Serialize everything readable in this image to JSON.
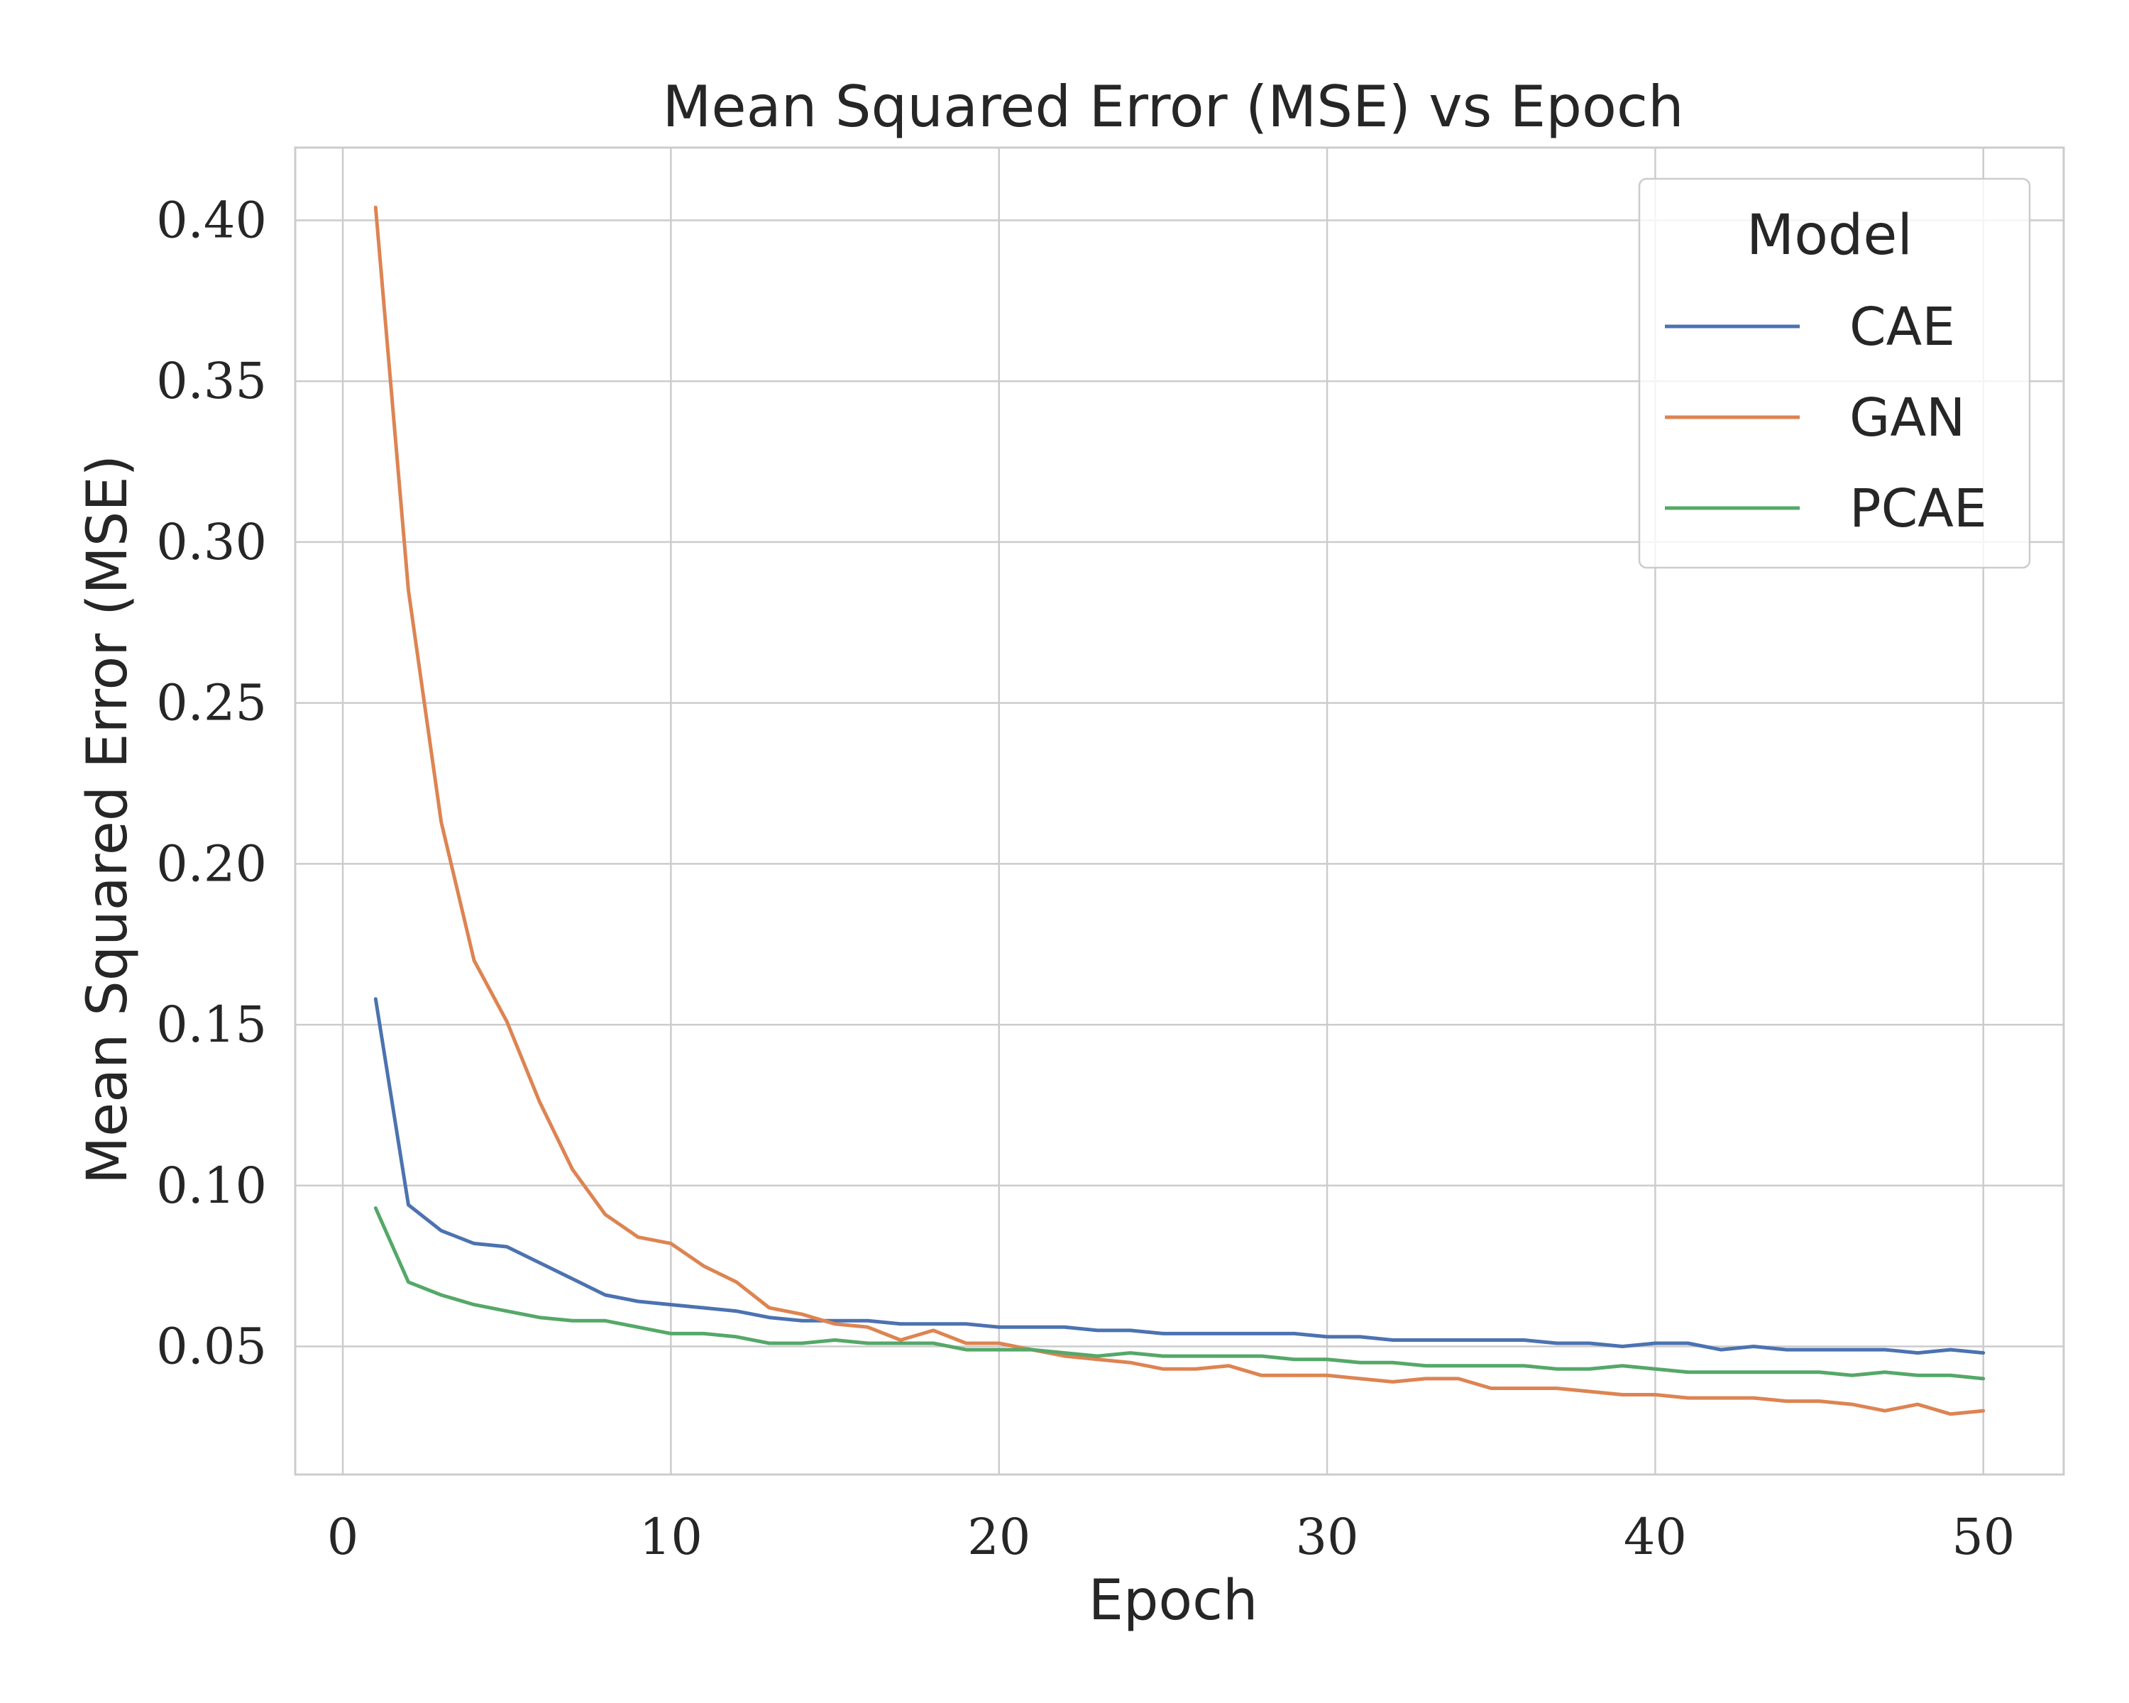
{
  "chart_data": {
    "type": "line",
    "title": "Mean Squared Error (MSE) vs Epoch",
    "xlabel": "Epoch",
    "ylabel": "Mean Squared Error (MSE)",
    "xlim": [
      -1.45,
      52.45
    ],
    "ylim": [
      0.0102,
      0.4226
    ],
    "x_ticks": [
      0,
      10,
      20,
      30,
      40,
      50
    ],
    "x_tick_labels": [
      "0",
      "10",
      "20",
      "30",
      "40",
      "50"
    ],
    "y_ticks": [
      0.05,
      0.1,
      0.15,
      0.2,
      0.25,
      0.3,
      0.35,
      0.4
    ],
    "y_tick_labels": [
      "0.05",
      "0.10",
      "0.15",
      "0.20",
      "0.25",
      "0.30",
      "0.35",
      "0.40"
    ],
    "grid": true,
    "legend": {
      "title": "Model",
      "placement": "top-right"
    },
    "x": [
      1,
      2,
      3,
      4,
      5,
      6,
      7,
      8,
      9,
      10,
      11,
      12,
      13,
      14,
      15,
      16,
      17,
      18,
      19,
      20,
      21,
      22,
      23,
      24,
      25,
      26,
      27,
      28,
      29,
      30,
      31,
      32,
      33,
      34,
      35,
      36,
      37,
      38,
      39,
      40,
      41,
      42,
      43,
      44,
      45,
      46,
      47,
      48,
      49,
      50
    ],
    "series": [
      {
        "name": "CAE",
        "color": "#4c72b0",
        "values": [
          0.158,
          0.094,
          0.086,
          0.082,
          0.081,
          0.076,
          0.071,
          0.066,
          0.064,
          0.063,
          0.062,
          0.061,
          0.059,
          0.058,
          0.058,
          0.058,
          0.057,
          0.057,
          0.057,
          0.056,
          0.056,
          0.056,
          0.055,
          0.055,
          0.054,
          0.054,
          0.054,
          0.054,
          0.054,
          0.053,
          0.053,
          0.052,
          0.052,
          0.052,
          0.052,
          0.052,
          0.051,
          0.051,
          0.05,
          0.051,
          0.051,
          0.049,
          0.05,
          0.049,
          0.049,
          0.049,
          0.049,
          0.048,
          0.049,
          0.048
        ]
      },
      {
        "name": "GAN",
        "color": "#dd8452",
        "values": [
          0.404,
          0.285,
          0.213,
          0.17,
          0.151,
          0.126,
          0.105,
          0.091,
          0.084,
          0.082,
          0.075,
          0.07,
          0.062,
          0.06,
          0.057,
          0.056,
          0.052,
          0.055,
          0.051,
          0.051,
          0.049,
          0.047,
          0.046,
          0.045,
          0.043,
          0.043,
          0.044,
          0.041,
          0.041,
          0.041,
          0.04,
          0.039,
          0.04,
          0.04,
          0.037,
          0.037,
          0.037,
          0.036,
          0.035,
          0.035,
          0.034,
          0.034,
          0.034,
          0.033,
          0.033,
          0.032,
          0.03,
          0.032,
          0.029,
          0.03
        ]
      },
      {
        "name": "PCAE",
        "color": "#55a868",
        "values": [
          0.093,
          0.07,
          0.066,
          0.063,
          0.061,
          0.059,
          0.058,
          0.058,
          0.056,
          0.054,
          0.054,
          0.053,
          0.051,
          0.051,
          0.052,
          0.051,
          0.051,
          0.051,
          0.049,
          0.049,
          0.049,
          0.048,
          0.047,
          0.048,
          0.047,
          0.047,
          0.047,
          0.047,
          0.046,
          0.046,
          0.045,
          0.045,
          0.044,
          0.044,
          0.044,
          0.044,
          0.043,
          0.043,
          0.044,
          0.043,
          0.042,
          0.042,
          0.042,
          0.042,
          0.042,
          0.041,
          0.042,
          0.041,
          0.041,
          0.04
        ]
      }
    ]
  }
}
